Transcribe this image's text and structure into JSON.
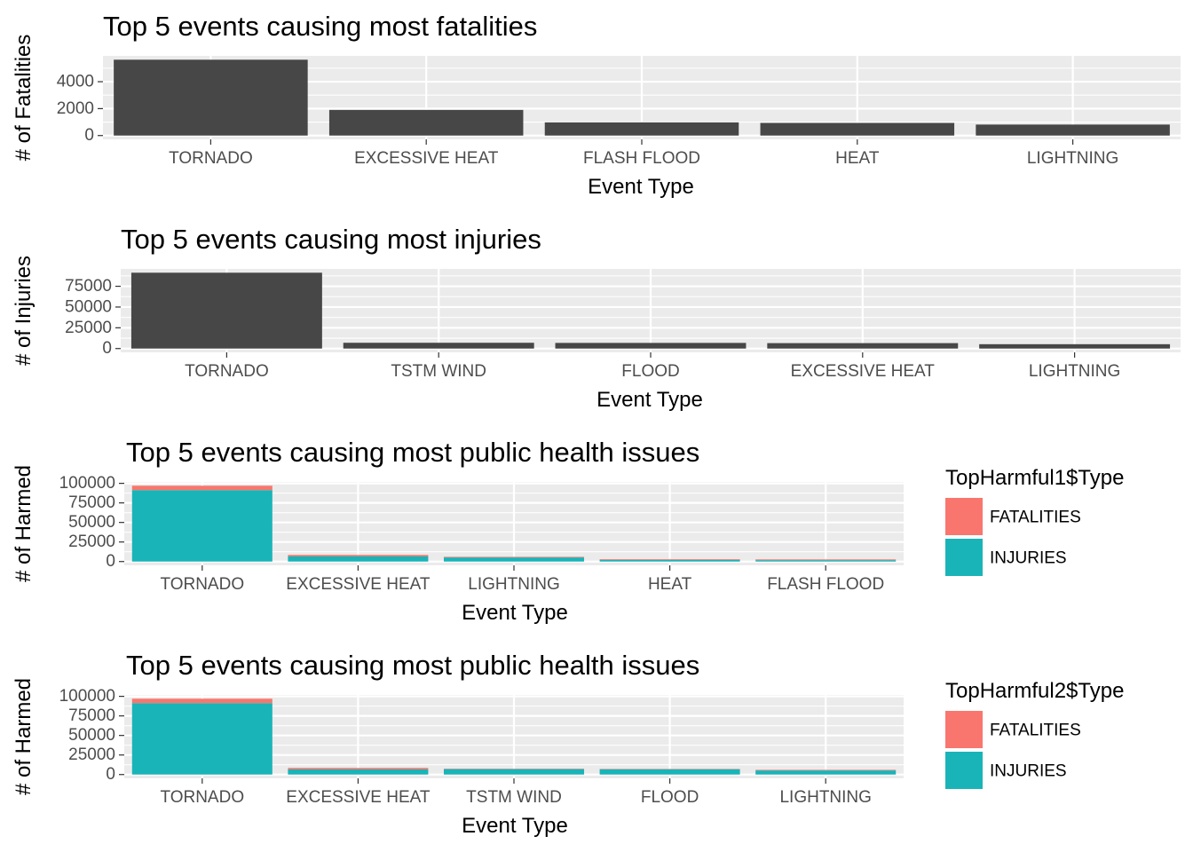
{
  "colors": {
    "panel_bg": "#ebebeb",
    "grid": "#ffffff",
    "bar_single": "#474747",
    "fatalities": "#f8766d",
    "injuries": "#19b4b8",
    "tick_text": "#4d4d4d"
  },
  "chart_data": [
    {
      "type": "bar",
      "title": "Top 5 events causing most fatalities",
      "xlabel": "Event Type",
      "ylabel": "# of Fatalities",
      "categories": [
        "TORNADO",
        "EXCESSIVE HEAT",
        "FLASH FLOOD",
        "HEAT",
        "LIGHTNING"
      ],
      "values": [
        5633,
        1903,
        978,
        937,
        816
      ],
      "ylim": [
        0,
        5633
      ],
      "yticks": [
        0,
        2000,
        4000
      ],
      "grid": true
    },
    {
      "type": "bar",
      "title": "Top 5 events causing most injuries",
      "xlabel": "Event Type",
      "ylabel": "# of Injuries",
      "categories": [
        "TORNADO",
        "TSTM WIND",
        "FLOOD",
        "EXCESSIVE HEAT",
        "LIGHTNING"
      ],
      "values": [
        91346,
        6957,
        6789,
        6525,
        5230
      ],
      "ylim": [
        0,
        91346
      ],
      "yticks": [
        0,
        25000,
        50000,
        75000
      ],
      "grid": true
    },
    {
      "type": "bar",
      "stacked": true,
      "title": "Top 5 events causing most public health issues",
      "xlabel": "Event Type",
      "ylabel": "# of Harmed",
      "categories": [
        "TORNADO",
        "EXCESSIVE HEAT",
        "LIGHTNING",
        "HEAT",
        "FLASH FLOOD"
      ],
      "series": [
        {
          "name": "INJURIES",
          "values": [
            91346,
            6525,
            5230,
            2100,
            1777
          ]
        },
        {
          "name": "FATALITIES",
          "values": [
            5633,
            1903,
            816,
            937,
            978
          ]
        }
      ],
      "ylim": [
        0,
        96979
      ],
      "yticks": [
        0,
        25000,
        50000,
        75000,
        100000
      ],
      "legend": {
        "title": "TopHarmful1$Type",
        "entries": [
          "FATALITIES",
          "INJURIES"
        ],
        "position": "right"
      },
      "grid": true
    },
    {
      "type": "bar",
      "stacked": true,
      "title": "Top 5 events causing most public health issues",
      "xlabel": "Event Type",
      "ylabel": "# of Harmed",
      "categories": [
        "TORNADO",
        "EXCESSIVE HEAT",
        "TSTM WIND",
        "FLOOD",
        "LIGHTNING"
      ],
      "series": [
        {
          "name": "INJURIES",
          "values": [
            91346,
            6525,
            6957,
            6789,
            5230
          ]
        },
        {
          "name": "FATALITIES",
          "values": [
            5633,
            1903,
            504,
            470,
            816
          ]
        }
      ],
      "ylim": [
        0,
        96979
      ],
      "yticks": [
        0,
        25000,
        50000,
        75000,
        100000
      ],
      "legend": {
        "title": "TopHarmful2$Type",
        "entries": [
          "FATALITIES",
          "INJURIES"
        ],
        "position": "right"
      },
      "grid": true
    }
  ]
}
